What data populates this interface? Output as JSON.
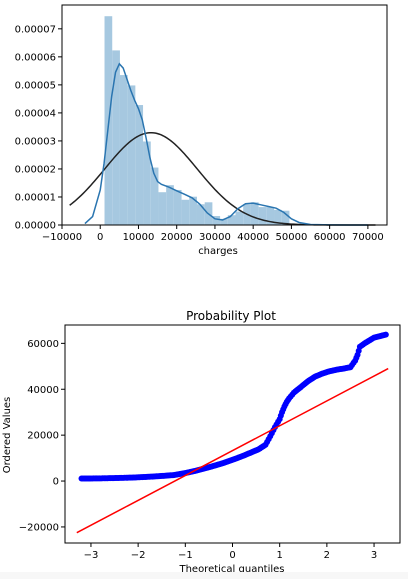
{
  "chart_data": [
    {
      "type": "histogram",
      "title": "",
      "xlabel": "charges",
      "ylabel": "",
      "xlim": [
        -10000,
        75000
      ],
      "ylim": [
        0,
        7.85e-05
      ],
      "xticks": [
        -10000,
        0,
        10000,
        20000,
        30000,
        40000,
        50000,
        60000,
        70000
      ],
      "xtick_labels": [
        "−10000",
        "0",
        "10000",
        "20000",
        "30000",
        "40000",
        "50000",
        "60000",
        "70000"
      ],
      "yticks": [
        0,
        1e-05,
        2e-05,
        3e-05,
        4e-05,
        5e-05,
        6e-05,
        7e-05
      ],
      "ytick_labels": [
        "0.00000",
        "0.00001",
        "0.00002",
        "0.00003",
        "0.00004",
        "0.00005",
        "0.00006",
        "0.00007"
      ],
      "bins": {
        "edges": [
          1122,
          3137,
          5152,
          7167,
          9182,
          11197,
          13212,
          15227,
          17242,
          19257,
          21272,
          23287,
          25302,
          27317,
          29332,
          31347,
          33362,
          35377,
          37392,
          39407,
          41422,
          43437,
          45452,
          47467,
          49482,
          51497,
          53512,
          55527,
          57542,
          59557,
          61572,
          63587
        ],
        "density": [
          7.45e-05,
          6.23e-05,
          5.35e-05,
          4.98e-05,
          4.28e-05,
          2.98e-05,
          2.05e-05,
          1.17e-05,
          1.42e-05,
          1.25e-05,
          9e-06,
          1.01e-05,
          7.4e-06,
          8.1e-06,
          3.2e-06,
          2.2e-06,
          3.5e-06,
          4.8e-06,
          7.4e-06,
          8.1e-06,
          6.4e-06,
          6.4e-06,
          5.4e-06,
          5.1e-06,
          0.0,
          3e-07,
          0.0,
          2e-07,
          0.0,
          0.0,
          2e-07
        ],
        "color": "#a6c8e0"
      },
      "kde": {
        "color": "#2a75b0",
        "x": [
          -4000,
          -2000,
          0,
          1000,
          2000,
          3000,
          4000,
          5000,
          6000,
          7000,
          8000,
          9000,
          10000,
          11000,
          12000,
          13000,
          14000,
          15000,
          16000,
          18000,
          20000,
          22000,
          24000,
          26000,
          28000,
          30000,
          32000,
          34000,
          36000,
          38000,
          40000,
          42000,
          44000,
          46000,
          48000,
          50000,
          52000,
          55000,
          60000,
          65000,
          70000
        ],
        "y": [
          5e-07,
          3e-06,
          1.25e-05,
          2.2e-05,
          3.4e-05,
          4.6e-05,
          5.45e-05,
          5.75e-05,
          5.6e-05,
          5.2e-05,
          4.8e-05,
          4.45e-05,
          4.15e-05,
          3.75e-05,
          3.1e-05,
          2.4e-05,
          1.85e-05,
          1.55e-05,
          1.45e-05,
          1.35e-05,
          1.22e-05,
          1.1e-05,
          9.7e-06,
          7.5e-06,
          4.3e-06,
          2.2e-06,
          1.8e-06,
          3e-06,
          5.8e-06,
          7.6e-06,
          7.8e-06,
          7.2e-06,
          6.6e-06,
          6e-06,
          4.5e-06,
          2.2e-06,
          9e-07,
          2e-07,
          5e-08,
          2e-08,
          0.0
        ]
      },
      "normal_fit": {
        "color": "#222222",
        "mean": 13270,
        "std": 12110,
        "x_range": [
          -8000,
          72000
        ]
      }
    },
    {
      "type": "scatter",
      "title": "Probability Plot",
      "xlabel": "Theoretical quantiles",
      "ylabel": "Ordered Values",
      "xlim": [
        -3.55,
        3.55
      ],
      "ylim": [
        -27000,
        68000
      ],
      "xticks": [
        -3,
        -2,
        -1,
        0,
        1,
        2,
        3
      ],
      "xtick_labels": [
        "−3",
        "−2",
        "−1",
        "0",
        "1",
        "2",
        "3"
      ],
      "yticks": [
        -20000,
        0,
        20000,
        40000,
        60000
      ],
      "ytick_labels": [
        "−20000",
        "0",
        "20000",
        "40000",
        "60000"
      ],
      "points": {
        "color": "#0000ff",
        "q": [
          -3.2,
          -3.0,
          -2.85,
          -2.75,
          -2.65,
          -2.55,
          -2.45,
          -2.35,
          -2.25,
          -2.1,
          -2.0,
          -1.85,
          -1.7,
          -1.55,
          -1.4,
          -1.25,
          -1.1,
          -0.95,
          -0.8,
          -0.65,
          -0.5,
          -0.35,
          -0.2,
          -0.05,
          0.1,
          0.25,
          0.4,
          0.55,
          0.7,
          0.8,
          0.9,
          1.0,
          1.05,
          1.1,
          1.15,
          1.2,
          1.3,
          1.45,
          1.6,
          1.75,
          1.9,
          2.05,
          2.2,
          2.35,
          2.5,
          2.6,
          2.65,
          2.7,
          2.8,
          3.0,
          3.25
        ],
        "v": [
          1100,
          1130,
          1150,
          1200,
          1240,
          1280,
          1320,
          1380,
          1440,
          1520,
          1650,
          1780,
          1950,
          2150,
          2350,
          2600,
          3100,
          3700,
          4400,
          5200,
          6000,
          6900,
          7800,
          8900,
          10000,
          11200,
          12500,
          13800,
          15800,
          19500,
          23500,
          27000,
          30000,
          32500,
          34500,
          36000,
          38500,
          41000,
          43500,
          45500,
          46800,
          47800,
          48500,
          49000,
          49600,
          52500,
          55000,
          58500,
          60000,
          62500,
          63800
        ]
      },
      "fit_line": {
        "color": "#ff0000",
        "x": [
          -3.3,
          3.3
        ],
        "y": [
          -22500,
          49000
        ]
      }
    }
  ]
}
